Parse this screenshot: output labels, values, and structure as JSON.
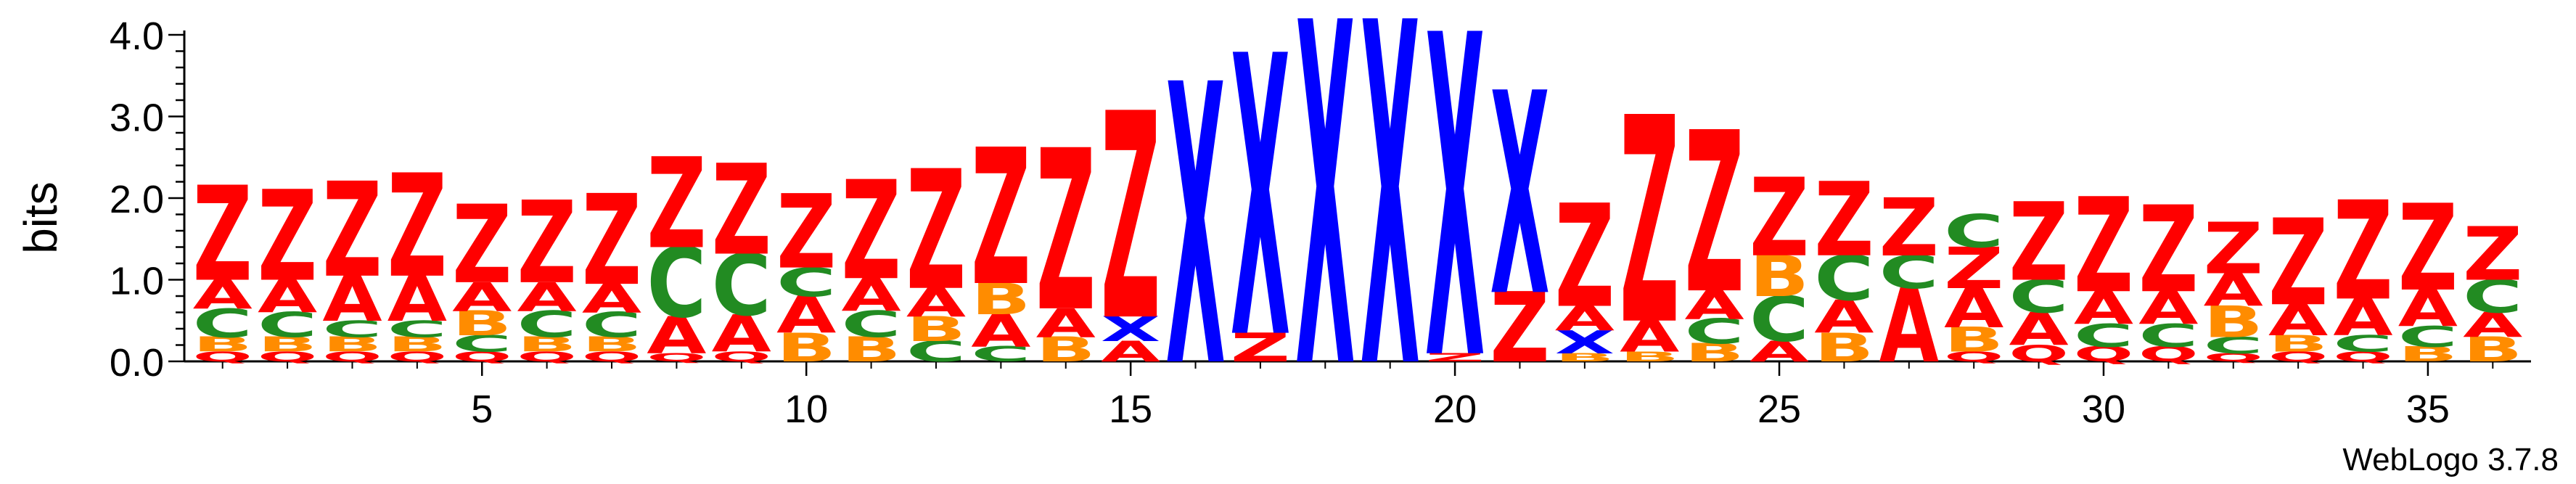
{
  "chart_data": {
    "type": "sequence-logo",
    "ylabel": "bits",
    "ylim": [
      0,
      4.0
    ],
    "yticks": [
      "0.0",
      "1.0",
      "2.0",
      "3.0",
      "4.0"
    ],
    "xticks": [
      5,
      10,
      15,
      20,
      25,
      30,
      35
    ],
    "positions_count": 36,
    "colors": {
      "Z": "#ff0000",
      "A": "#ff0000",
      "X": "#0000ff",
      "C": "#228b22",
      "B": "#ff8c00",
      "Q": "#ff0000"
    },
    "positions": [
      {
        "pos": 1,
        "letters": [
          [
            "Q",
            0.12
          ],
          [
            "B",
            0.18
          ],
          [
            "C",
            0.35
          ],
          [
            "A",
            0.35
          ],
          [
            "Z",
            1.15
          ]
        ]
      },
      {
        "pos": 2,
        "letters": [
          [
            "Q",
            0.12
          ],
          [
            "B",
            0.18
          ],
          [
            "C",
            0.3
          ],
          [
            "A",
            0.4
          ],
          [
            "Z",
            1.1
          ]
        ]
      },
      {
        "pos": 3,
        "letters": [
          [
            "Q",
            0.12
          ],
          [
            "B",
            0.18
          ],
          [
            "C",
            0.2
          ],
          [
            "A",
            0.55
          ],
          [
            "Z",
            1.15
          ]
        ]
      },
      {
        "pos": 4,
        "letters": [
          [
            "Q",
            0.12
          ],
          [
            "B",
            0.18
          ],
          [
            "C",
            0.2
          ],
          [
            "A",
            0.55
          ],
          [
            "Z",
            1.25
          ]
        ]
      },
      {
        "pos": 5,
        "letters": [
          [
            "Q",
            0.12
          ],
          [
            "C",
            0.2
          ],
          [
            "B",
            0.3
          ],
          [
            "A",
            0.35
          ],
          [
            "Z",
            0.95
          ]
        ]
      },
      {
        "pos": 6,
        "letters": [
          [
            "Q",
            0.12
          ],
          [
            "B",
            0.18
          ],
          [
            "C",
            0.32
          ],
          [
            "A",
            0.35
          ],
          [
            "Z",
            1.0
          ]
        ]
      },
      {
        "pos": 7,
        "letters": [
          [
            "Q",
            0.12
          ],
          [
            "B",
            0.18
          ],
          [
            "C",
            0.3
          ],
          [
            "A",
            0.35
          ],
          [
            "Z",
            1.1
          ]
        ]
      },
      {
        "pos": 8,
        "letters": [
          [
            "Q",
            0.1
          ],
          [
            "A",
            0.45
          ],
          [
            "C",
            0.85
          ],
          [
            "Z",
            1.1
          ]
        ]
      },
      {
        "pos": 9,
        "letters": [
          [
            "Q",
            0.12
          ],
          [
            "A",
            0.45
          ],
          [
            "C",
            0.75
          ],
          [
            "Z",
            1.1
          ]
        ]
      },
      {
        "pos": 10,
        "letters": [
          [
            "B",
            0.35
          ],
          [
            "A",
            0.45
          ],
          [
            "C",
            0.35
          ],
          [
            "Z",
            0.9
          ]
        ]
      },
      {
        "pos": 11,
        "letters": [
          [
            "B",
            0.3
          ],
          [
            "C",
            0.32
          ],
          [
            "A",
            0.4
          ],
          [
            "Z",
            1.2
          ]
        ]
      },
      {
        "pos": 12,
        "letters": [
          [
            "C",
            0.25
          ],
          [
            "B",
            0.3
          ],
          [
            "A",
            0.35
          ],
          [
            "Z",
            1.45
          ]
        ]
      },
      {
        "pos": 13,
        "letters": [
          [
            "C",
            0.18
          ],
          [
            "A",
            0.4
          ],
          [
            "B",
            0.38
          ],
          [
            "Z",
            1.65
          ]
        ]
      },
      {
        "pos": 14,
        "letters": [
          [
            "B",
            0.3
          ],
          [
            "A",
            0.35
          ],
          [
            "Z",
            1.95
          ]
        ]
      },
      {
        "pos": 15,
        "letters": [
          [
            "A",
            0.25
          ],
          [
            "X",
            0.3
          ],
          [
            "Z",
            2.5
          ]
        ]
      },
      {
        "pos": 16,
        "letters": [
          [
            "X",
            3.4
          ]
        ]
      },
      {
        "pos": 17,
        "letters": [
          [
            "Z",
            0.35
          ],
          [
            "X",
            3.4
          ]
        ]
      },
      {
        "pos": 18,
        "letters": [
          [
            "X",
            4.15
          ]
        ]
      },
      {
        "pos": 19,
        "letters": [
          [
            "X",
            4.15
          ]
        ]
      },
      {
        "pos": 20,
        "letters": [
          [
            "Z",
            0.1
          ],
          [
            "X",
            3.9
          ]
        ]
      },
      {
        "pos": 21,
        "letters": [
          [
            "Z",
            0.85
          ],
          [
            "X",
            2.45
          ]
        ]
      },
      {
        "pos": 22,
        "letters": [
          [
            "B",
            0.1
          ],
          [
            "X",
            0.28
          ],
          [
            "A",
            0.3
          ],
          [
            "Z",
            1.25
          ]
        ]
      },
      {
        "pos": 23,
        "letters": [
          [
            "B",
            0.12
          ],
          [
            "A",
            0.38
          ],
          [
            "Z",
            2.5
          ]
        ]
      },
      {
        "pos": 24,
        "letters": [
          [
            "B",
            0.22
          ],
          [
            "C",
            0.3
          ],
          [
            "A",
            0.35
          ],
          [
            "Z",
            1.95
          ]
        ]
      },
      {
        "pos": 25,
        "letters": [
          [
            "A",
            0.25
          ],
          [
            "C",
            0.55
          ],
          [
            "B",
            0.5
          ],
          [
            "Z",
            0.95
          ]
        ]
      },
      {
        "pos": 26,
        "letters": [
          [
            "B",
            0.35
          ],
          [
            "A",
            0.4
          ],
          [
            "C",
            0.55
          ],
          [
            "Z",
            0.9
          ]
        ]
      },
      {
        "pos": 27,
        "letters": [
          [
            "A",
            0.9
          ],
          [
            "C",
            0.4
          ],
          [
            "Z",
            0.7
          ]
        ]
      },
      {
        "pos": 28,
        "letters": [
          [
            "Q",
            0.12
          ],
          [
            "B",
            0.3
          ],
          [
            "A",
            0.48
          ],
          [
            "Z",
            0.5
          ],
          [
            "C",
            0.4
          ]
        ]
      },
      {
        "pos": 29,
        "letters": [
          [
            "Q",
            0.2
          ],
          [
            "A",
            0.4
          ],
          [
            "C",
            0.4
          ],
          [
            "Z",
            0.95
          ]
        ]
      },
      {
        "pos": 30,
        "letters": [
          [
            "Q",
            0.18
          ],
          [
            "C",
            0.28
          ],
          [
            "A",
            0.4
          ],
          [
            "Z",
            1.15
          ]
        ]
      },
      {
        "pos": 31,
        "letters": [
          [
            "Q",
            0.18
          ],
          [
            "C",
            0.28
          ],
          [
            "A",
            0.4
          ],
          [
            "Z",
            1.05
          ]
        ]
      },
      {
        "pos": 32,
        "letters": [
          [
            "Q",
            0.1
          ],
          [
            "C",
            0.2
          ],
          [
            "B",
            0.38
          ],
          [
            "A",
            0.4
          ],
          [
            "Z",
            0.62
          ]
        ]
      },
      {
        "pos": 33,
        "letters": [
          [
            "Q",
            0.12
          ],
          [
            "B",
            0.2
          ],
          [
            "A",
            0.38
          ],
          [
            "Z",
            1.05
          ]
        ]
      },
      {
        "pos": 34,
        "letters": [
          [
            "Q",
            0.12
          ],
          [
            "C",
            0.2
          ],
          [
            "A",
            0.45
          ],
          [
            "Z",
            1.2
          ]
        ]
      },
      {
        "pos": 35,
        "letters": [
          [
            "B",
            0.18
          ],
          [
            "C",
            0.25
          ],
          [
            "A",
            0.45
          ],
          [
            "Z",
            1.05
          ]
        ]
      },
      {
        "pos": 36,
        "letters": [
          [
            "B",
            0.3
          ],
          [
            "A",
            0.3
          ],
          [
            "C",
            0.4
          ],
          [
            "Z",
            0.65
          ]
        ]
      }
    ]
  },
  "credit": "WebLogo 3.7.8"
}
